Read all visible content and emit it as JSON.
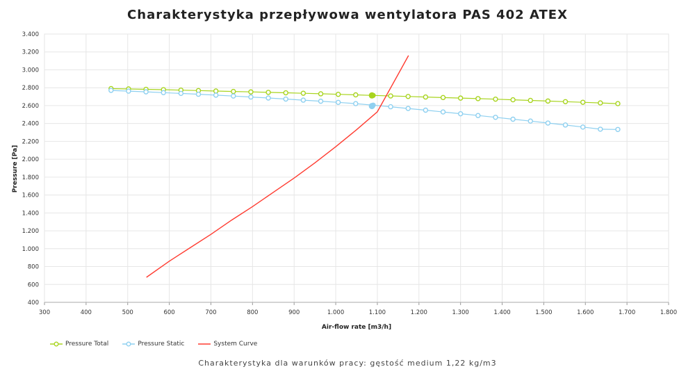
{
  "chart_data": {
    "type": "line",
    "title": "Charakterystyka przepływowa wentylatora PAS 402 ATEX",
    "xlabel": "Air-flow rate [m3/h]",
    "ylabel": "Pressure [Pa]",
    "xlim": [
      300,
      1800
    ],
    "ylim": [
      400,
      3400
    ],
    "x_ticks": [
      "300",
      "400",
      "500",
      "600",
      "700",
      "800",
      "900",
      "1.000",
      "1.100",
      "1.200",
      "1.300",
      "1.400",
      "1.500",
      "1.600",
      "1.700",
      "1.800"
    ],
    "y_ticks": [
      "400",
      "600",
      "800",
      "1.000",
      "1.200",
      "1.400",
      "1.600",
      "1.800",
      "2.000",
      "2.200",
      "2.400",
      "2.600",
      "2.800",
      "3.000",
      "3.200",
      "3.400"
    ],
    "grid": true,
    "legend_position": "bottom-left",
    "series": [
      {
        "name": "Pressure Total",
        "color": "#a8d41e",
        "marker": "circle-open",
        "x": [
          460,
          502,
          544,
          586,
          628,
          670,
          712,
          754,
          796,
          838,
          880,
          922,
          964,
          1006,
          1048,
          1090,
          1132,
          1174,
          1216,
          1258,
          1300,
          1342,
          1384,
          1426,
          1468,
          1510,
          1552,
          1594,
          1636,
          1678
        ],
        "y": [
          2790,
          2786,
          2782,
          2778,
          2773,
          2768,
          2763,
          2758,
          2753,
          2748,
          2743,
          2738,
          2732,
          2726,
          2720,
          2714,
          2708,
          2702,
          2696,
          2690,
          2684,
          2678,
          2672,
          2665,
          2658,
          2651,
          2644,
          2637,
          2630,
          2622
        ]
      },
      {
        "name": "Pressure Static",
        "color": "#8ed0f0",
        "marker": "circle-open",
        "x": [
          460,
          502,
          544,
          586,
          628,
          670,
          712,
          754,
          796,
          838,
          880,
          922,
          964,
          1006,
          1048,
          1090,
          1132,
          1174,
          1216,
          1258,
          1300,
          1342,
          1384,
          1426,
          1468,
          1510,
          1552,
          1594,
          1636,
          1678
        ],
        "y": [
          2770,
          2762,
          2754,
          2745,
          2736,
          2727,
          2717,
          2707,
          2696,
          2685,
          2673,
          2661,
          2649,
          2636,
          2622,
          2605,
          2587,
          2568,
          2549,
          2529,
          2509,
          2489,
          2469,
          2448,
          2427,
          2405,
          2383,
          2360,
          2336,
          2333
        ]
      },
      {
        "name": "System Curve",
        "color": "#ff3b30",
        "marker": "none",
        "x": [
          545,
          600,
          650,
          700,
          750,
          800,
          850,
          900,
          950,
          1000,
          1050,
          1100,
          1150,
          1175
        ],
        "y": [
          680,
          860,
          1010,
          1160,
          1320,
          1470,
          1630,
          1790,
          1960,
          2140,
          2330,
          2530,
          2950,
          3160
        ]
      }
    ],
    "operating_points": [
      {
        "series": "Pressure Total",
        "x": 1087,
        "y": 2714
      },
      {
        "series": "Pressure Static",
        "x": 1087,
        "y": 2595
      }
    ]
  },
  "caption": "Charakterystyka dla warunków pracy: gęstość medium 1,22 kg/m3"
}
